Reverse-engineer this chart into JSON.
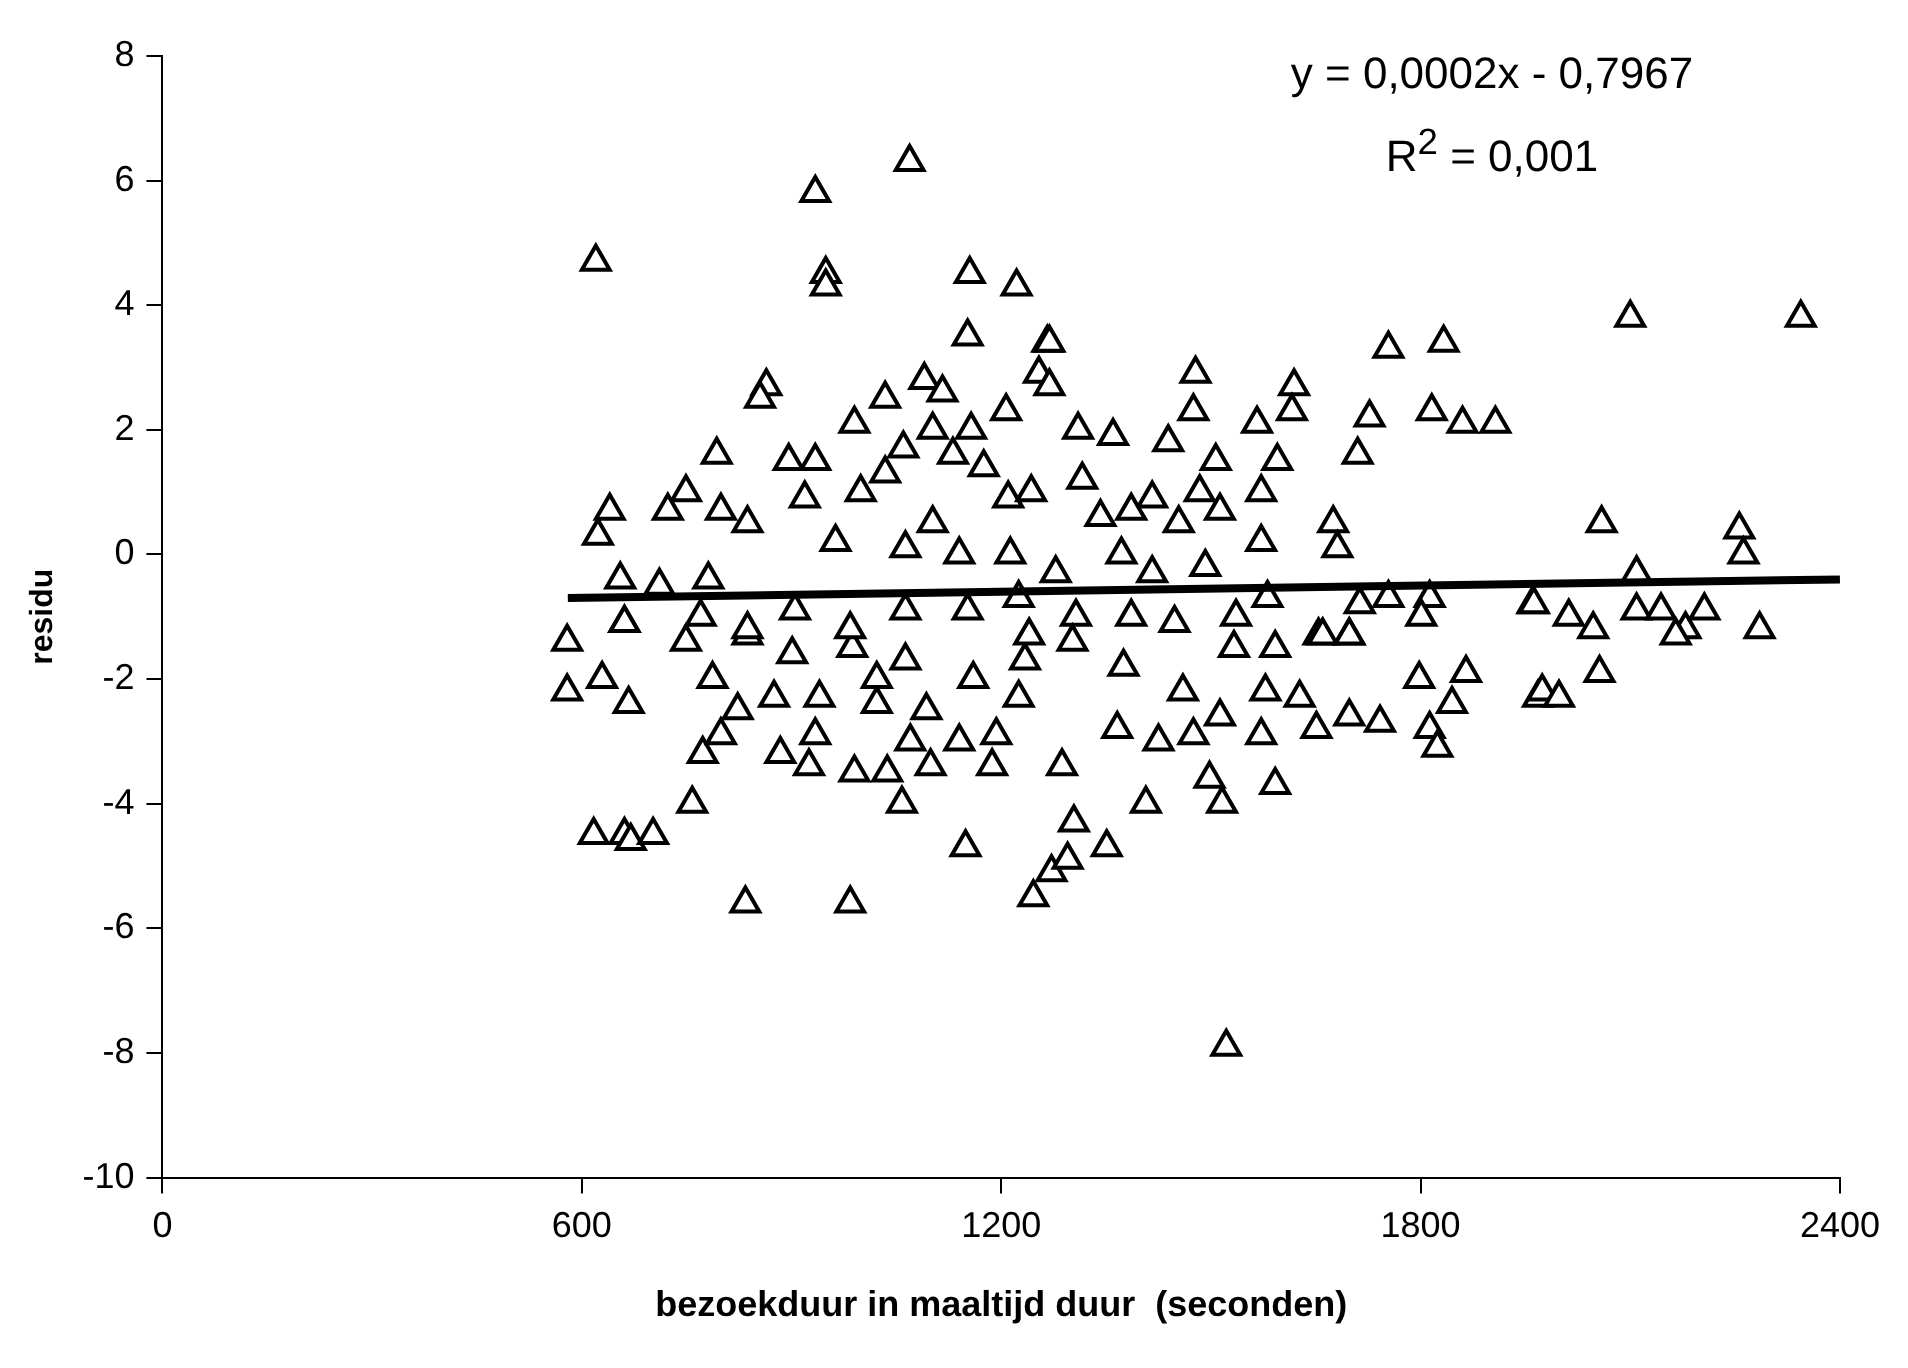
{
  "chart_data": {
    "type": "scatter",
    "xlabel": "bezoekduur in maaltijd duur  (seconden)",
    "ylabel": "residu",
    "xlim": [
      0,
      2400
    ],
    "xticks": [
      0,
      600,
      1200,
      1800,
      2400
    ],
    "ylim": [
      -10,
      8
    ],
    "yticks": [
      -10,
      -8,
      -6,
      -4,
      -2,
      0,
      2,
      4,
      6,
      8
    ],
    "grid": false,
    "marker": "triangle",
    "annotations": [
      "y = 0,0002x - 0,7967",
      "R$^{2}$ = 0,001"
    ],
    "series": [
      {
        "type": "scatter",
        "color": "#000000",
        "x": [
          579,
          579,
          629,
          667,
          758,
          834,
          984,
          1058,
          1149,
          1246,
          773,
          990,
          1037,
          1099,
          1187,
          934,
          799,
          884,
          925,
          1140,
          1070,
          1193,
          823,
          875,
          940,
          1022,
          1093,
          1225,
          1234,
          1160,
          987,
          901,
          837,
          749,
          787,
          1022,
          1063,
          661,
          620,
          934,
          1069,
          949,
          949,
          1155,
          1222,
          1152,
          1266,
          864,
          855,
          1034,
          990,
          1090,
          1116,
          1207,
          1254,
          793,
          749,
          723,
          640,
          623,
          655,
          711,
          781,
          799,
          837,
          896,
          934,
          919,
          963,
          999,
          1034,
          1060,
          1102,
          1157,
          1131,
          1175,
          1210,
          1243,
          1102,
          1063,
          1140,
          1213,
          1152,
          1225,
          1063,
          984,
          905,
          837,
          770,
          661,
          1269,
          1269,
          1478,
          1475,
          1619,
          1616,
          1754,
          1833,
          1727,
          1710,
          1816,
          1860,
          1907,
          1360,
          1310,
          1439,
          1507,
          1566,
          1595,
          1572,
          1484,
          1416,
          1386,
          1316,
          1342,
          1454,
          1513,
          1572,
          1675,
          1681,
          1581,
          1654,
          1698,
          1713,
          1754,
          1813,
          1801,
          1960,
          1536,
          1448,
          1386,
          1307,
          1240,
          1416,
          1492,
          1278,
          1372,
          1798,
          1865,
          1845,
          1813,
          1824,
          1742,
          1698,
          1651,
          1627,
          1578,
          1572,
          1513,
          1475,
          1425,
          1366,
          1287,
          1460,
          1375,
          1533,
          1592,
          1698,
          1968,
          1660,
          1302,
          617,
          661,
          670,
          702,
          1272,
          1295,
          1304,
          1351,
          1407,
          1498,
          1516,
          1592,
          1522,
          2100,
          2344,
          2059,
          2256,
          2262,
          1962,
          2012,
          2047,
          2109,
          2109,
          2144,
          2179,
          2206,
          2165,
          2285,
          2056,
          1974,
          1998
        ],
        "values": [
          -1.4,
          -2.2,
          -2.0,
          -2.4,
          -4.0,
          -5.6,
          -5.6,
          -4.0,
          -4.7,
          -5.5,
          -3.2,
          -3.5,
          -3.5,
          -3.4,
          -3.4,
          -2.9,
          -2.9,
          -3.2,
          -3.4,
          -3.0,
          -3.0,
          -2.9,
          -2.5,
          -2.3,
          -2.3,
          -2.4,
          -2.5,
          -2.3,
          -1.7,
          -2.0,
          -1.5,
          -1.6,
          -1.3,
          -1.4,
          -2.0,
          -2.0,
          -1.7,
          -1.1,
          4.7,
          5.8,
          6.3,
          4.5,
          4.3,
          4.5,
          4.3,
          3.5,
          3.4,
          2.7,
          2.5,
          2.5,
          2.1,
          2.8,
          2.6,
          2.3,
          2.9,
          1.6,
          1.0,
          0.7,
          0.7,
          0.3,
          -0.4,
          -0.5,
          -0.4,
          0.7,
          0.5,
          1.5,
          1.5,
          0.9,
          0.2,
          1.0,
          1.3,
          1.7,
          2.0,
          2.0,
          1.6,
          1.4,
          0.9,
          1.0,
          0.5,
          0.1,
          0.0,
          0.0,
          -0.9,
          -0.7,
          -0.9,
          -1.2,
          -0.9,
          -1.2,
          -1.0,
          -1.1,
          3.4,
          2.7,
          2.9,
          2.3,
          2.7,
          2.3,
          3.3,
          3.4,
          2.2,
          1.6,
          2.3,
          2.1,
          2.1,
          1.9,
          2.0,
          1.8,
          1.5,
          2.1,
          1.5,
          1.0,
          1.0,
          0.9,
          0.7,
          1.2,
          0.6,
          0.5,
          0.7,
          0.2,
          0.5,
          0.1,
          -0.7,
          -1.3,
          -1.3,
          -0.8,
          -0.7,
          -0.7,
          -1.0,
          -0.8,
          -1.0,
          -1.1,
          -1.0,
          -1.0,
          -1.3,
          -0.3,
          -0.2,
          -0.3,
          0.0,
          -2.0,
          -1.9,
          -2.4,
          -2.8,
          -3.1,
          -2.7,
          -2.6,
          -2.8,
          -2.3,
          -2.2,
          -2.9,
          -2.6,
          -2.9,
          -3.0,
          -2.8,
          -3.4,
          -2.2,
          -1.8,
          -1.5,
          -1.5,
          -1.3,
          -2.3,
          -1.3,
          -1.4,
          -4.5,
          -4.5,
          -4.6,
          -4.5,
          -5.1,
          -4.9,
          -4.3,
          -4.7,
          -4.0,
          -3.6,
          -4.0,
          -3.7,
          -7.9,
          3.8,
          3.8,
          0.5,
          0.4,
          0.0,
          -0.8,
          -1.0,
          -1.2,
          -0.9,
          -0.3,
          -0.9,
          -1.2,
          -0.9,
          -1.3,
          -1.2,
          -1.9,
          -2.2,
          -2.3
        ]
      },
      {
        "type": "line",
        "color": "#000000",
        "marker": "none",
        "x": [
          580,
          2400
        ],
        "values": [
          -0.7,
          -0.4
        ]
      }
    ]
  }
}
